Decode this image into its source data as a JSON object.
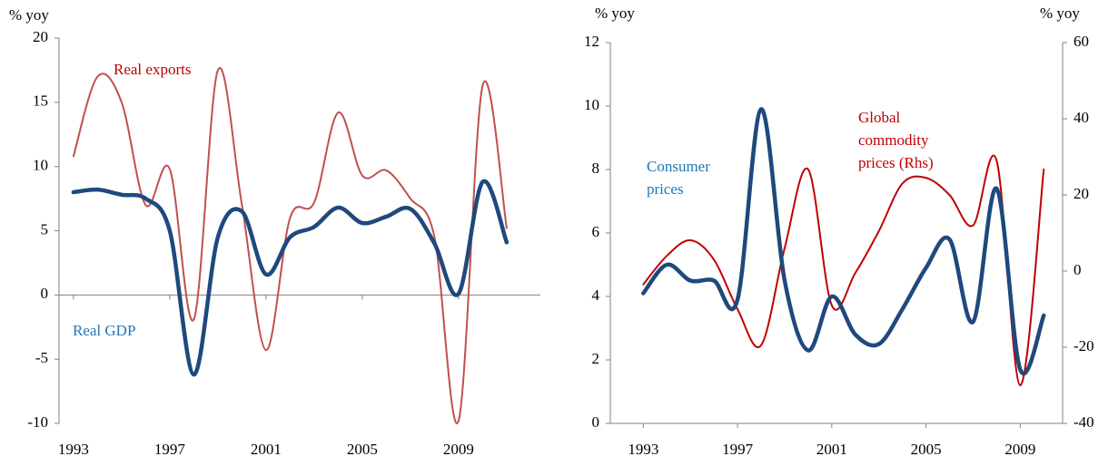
{
  "chart_data": [
    {
      "type": "line",
      "ylabel": "% yoy",
      "x": [
        1993,
        1994,
        1995,
        1996,
        1997,
        1998,
        1999,
        2000,
        2001,
        2002,
        2003,
        2004,
        2005,
        2006,
        2007,
        2008,
        2009,
        2010,
        2011
      ],
      "series": [
        {
          "name": "Real exports",
          "color": "#c0504d",
          "width": 2,
          "values": [
            10.8,
            17.0,
            15.0,
            7.0,
            9.8,
            -1.9,
            17.5,
            7.0,
            -4.3,
            6.0,
            7.2,
            14.2,
            9.3,
            9.7,
            7.5,
            4.5,
            -9.8,
            16.3,
            5.2
          ]
        },
        {
          "name": "Real GDP",
          "color": "#1f497d",
          "width": 4.5,
          "values": [
            8.0,
            8.2,
            7.8,
            7.5,
            5.0,
            -6.2,
            4.5,
            6.5,
            1.6,
            4.5,
            5.3,
            6.8,
            5.6,
            6.1,
            6.7,
            4.0,
            0.1,
            8.8,
            4.1
          ]
        }
      ],
      "annotations": [
        {
          "lines": [
            "Real exports"
          ]
        },
        {
          "lines": [
            "Real GDP"
          ]
        }
      ],
      "xlim": [
        1992.4,
        2012.4
      ],
      "xticks": [
        1993,
        1997,
        2001,
        2005,
        2009
      ],
      "ylim": [
        -10,
        20
      ],
      "yticks": [
        -10,
        -5,
        0,
        5,
        10,
        15,
        20
      ]
    },
    {
      "type": "line",
      "ylabel": "% yoy",
      "y2label": "% yoy",
      "x": [
        1993,
        1994,
        1995,
        1996,
        1997,
        1998,
        1999,
        2000,
        2001,
        2002,
        2003,
        2004,
        2005,
        2006,
        2007,
        2008,
        2009,
        2010
      ],
      "series": [
        {
          "name": "Global commodity prices (Rhs)",
          "color": "#c00000",
          "width": 2,
          "axis": "y2",
          "values": [
            -3.5,
            4.0,
            8.1,
            3.0,
            -10,
            -19.5,
            6,
            26.7,
            -9,
            -0.5,
            10.5,
            23,
            24.5,
            20,
            12,
            29,
            -30,
            26.7
          ]
        },
        {
          "name": "Consumer prices",
          "color": "#1f497d",
          "width": 4.5,
          "values": [
            4.1,
            5.0,
            4.5,
            4.5,
            3.9,
            9.9,
            4.5,
            2.3,
            4.0,
            2.8,
            2.5,
            3.6,
            4.9,
            5.8,
            3.2,
            7.4,
            1.7,
            3.4
          ]
        }
      ],
      "annotations": [
        {
          "lines": [
            "Global",
            "commodity",
            "prices (Rhs)"
          ]
        },
        {
          "lines": [
            "Consumer",
            "prices"
          ]
        }
      ],
      "xlim": [
        1991.6,
        2010.8
      ],
      "xticks": [
        1993,
        1997,
        2001,
        2005,
        2009
      ],
      "ylim": [
        0,
        12
      ],
      "yticks": [
        0,
        2,
        4,
        6,
        8,
        10,
        12
      ],
      "y2lim": [
        -40,
        60
      ],
      "y2ticks": [
        -40,
        -20,
        0,
        20,
        40,
        60
      ]
    }
  ]
}
